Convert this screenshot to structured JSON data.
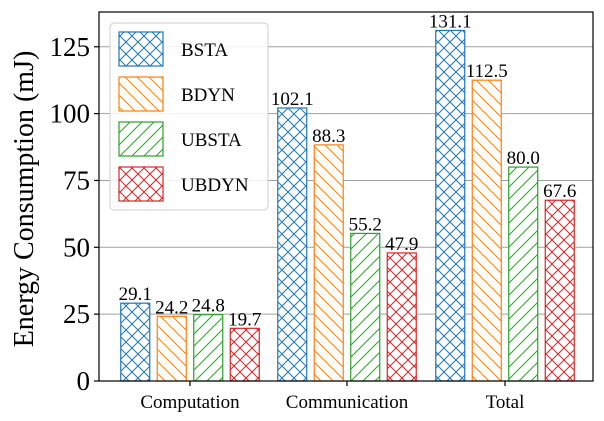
{
  "chart_data": {
    "type": "bar",
    "title": "",
    "xlabel": "",
    "ylabel": "Energy Consumption (mJ)",
    "ylim": [
      0,
      138
    ],
    "yticks": [
      0,
      25,
      50,
      75,
      100,
      125
    ],
    "grid": "horizontal",
    "legend_position": "top-left",
    "categories": [
      "Computation",
      "Communication",
      "Total"
    ],
    "series": [
      {
        "name": "BSTA",
        "color": "#1f77b4",
        "hatch": "crosshatch",
        "values": [
          29.1,
          102.1,
          131.1
        ],
        "labels": [
          "29.1",
          "102.1",
          "131.1"
        ]
      },
      {
        "name": "BDYN",
        "color": "#ff7f0e",
        "hatch": "backslash",
        "values": [
          24.2,
          88.3,
          112.5
        ],
        "labels": [
          "24.2",
          "88.3",
          "112.5"
        ]
      },
      {
        "name": "UBSTA",
        "color": "#2ca02c",
        "hatch": "slash",
        "values": [
          24.8,
          55.2,
          80.0
        ],
        "labels": [
          "24.8",
          "55.2",
          "80.0"
        ]
      },
      {
        "name": "UBDYN",
        "color": "#d62728",
        "hatch": "crosshatch",
        "values": [
          19.7,
          47.9,
          67.6
        ],
        "labels": [
          "19.7",
          "47.9",
          "67.6"
        ]
      }
    ]
  }
}
